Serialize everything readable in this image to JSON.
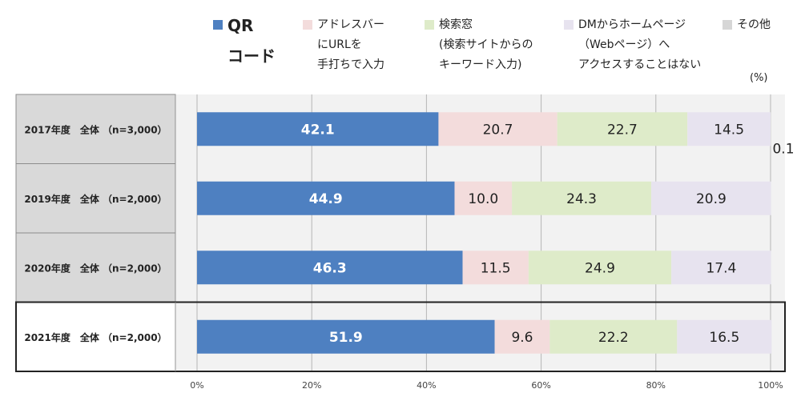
{
  "chart_data": {
    "type": "bar",
    "orientation": "horizontal",
    "stacked": true,
    "unit_label": "(%)",
    "categories": [
      "2017年度　全体 （n=3,000）",
      "2019年度　全体 （n=2,000）",
      "2020年度　全体 （n=2,000）",
      "2021年度　全体 （n=2,000）"
    ],
    "series": [
      {
        "name": "QR\nコード",
        "color": "#4e80c1",
        "values": [
          42.1,
          44.9,
          46.3,
          51.9
        ]
      },
      {
        "name": "アドレスバー\nにURLを\n手打ちで入力",
        "color": "#f3dcdc",
        "values": [
          20.7,
          10.0,
          11.5,
          9.6
        ]
      },
      {
        "name": "検索窓\n(検索サイトからの\nキーワード入力)",
        "color": "#deebc9",
        "values": [
          22.7,
          24.3,
          24.9,
          22.2
        ]
      },
      {
        "name": "DMからホームページ\n（Webページ）へ\nアクセスすることはない",
        "color": "#e7e3ef",
        "values": [
          14.5,
          20.9,
          17.4,
          16.5
        ]
      },
      {
        "name": "その他",
        "color": "#d6d6d6",
        "values": [
          0.1,
          0.0,
          0.0,
          0.0
        ]
      }
    ],
    "data_labels": [
      [
        "42.1",
        "20.7",
        "22.7",
        "14.5",
        "0.1"
      ],
      [
        "44.9",
        "10.0",
        "24.3",
        "20.9",
        ""
      ],
      [
        "46.3",
        "11.5",
        "24.9",
        "17.4",
        ""
      ],
      [
        "51.9",
        "9.6",
        "22.2",
        "16.5",
        ""
      ]
    ],
    "x_ticks": [
      "0%",
      "20%",
      "40%",
      "60%",
      "80%",
      "100%"
    ],
    "xlim": [
      0,
      100
    ],
    "highlighted_category": "2021年度　全体 （n=2,000）",
    "grid": true,
    "legend_position": "top"
  }
}
